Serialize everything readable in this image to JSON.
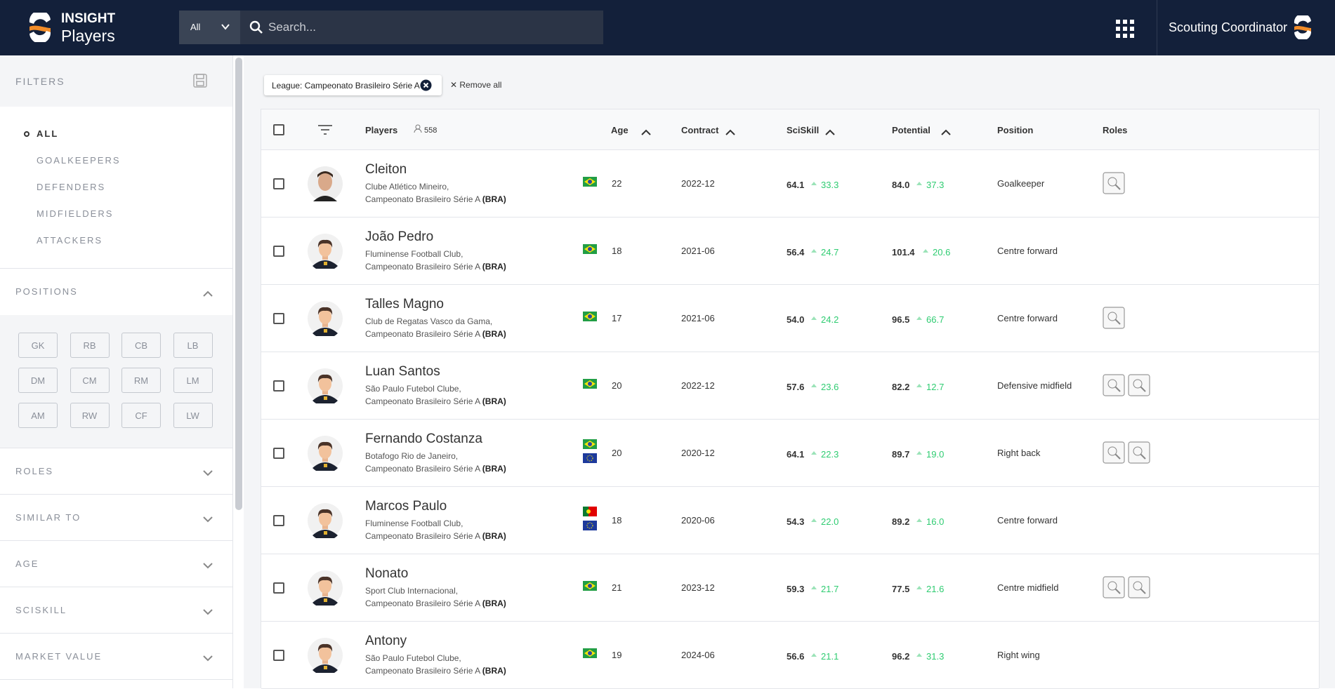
{
  "header": {
    "brand": "INSIGHT",
    "product": "Players",
    "search_scope": "All",
    "search_placeholder": "Search...",
    "user": "Scouting Coordinator"
  },
  "sidebar": {
    "title": "FILTERS",
    "groups": [
      "ALL",
      "GOALKEEPERS",
      "DEFENDERS",
      "MIDFIELDERS",
      "ATTACKERS"
    ],
    "positions_title": "POSITIONS",
    "positions": [
      "GK",
      "RB",
      "CB",
      "LB",
      "DM",
      "CM",
      "RM",
      "LM",
      "AM",
      "RW",
      "CF",
      "LW"
    ],
    "sections": [
      "ROLES",
      "SIMILAR TO",
      "AGE",
      "SCISKILL",
      "MARKET VALUE"
    ]
  },
  "chips": {
    "filter": "League: Campeonato Brasileiro Série A",
    "remove_all": "Remove all"
  },
  "table": {
    "columns": [
      "Players",
      "Age",
      "Contract",
      "SciSkill",
      "Potential",
      "Position",
      "Roles"
    ],
    "player_count": "558",
    "rows": [
      {
        "name": "Cleiton",
        "club": "Clube Atlético Mineiro,",
        "league": "Campeonato Brasileiro Série A",
        "country": "(BRA)",
        "age": "22",
        "contract": "2022-12",
        "sciskill": "64.1",
        "sciskill_delta": "33.3",
        "potential": "84.0",
        "potential_delta": "37.3",
        "position": "Goalkeeper"
      },
      {
        "name": "João Pedro",
        "club": "Fluminense Football Club,",
        "league": "Campeonato Brasileiro Série A",
        "country": "(BRA)",
        "age": "18",
        "contract": "2021-06",
        "sciskill": "56.4",
        "sciskill_delta": "24.7",
        "potential": "101.4",
        "potential_delta": "20.6",
        "position": "Centre forward"
      },
      {
        "name": "Talles Magno",
        "club": "Club de Regatas Vasco da Gama,",
        "league": "Campeonato Brasileiro Série A",
        "country": "(BRA)",
        "age": "17",
        "contract": "2021-06",
        "sciskill": "54.0",
        "sciskill_delta": "24.2",
        "potential": "96.5",
        "potential_delta": "66.7",
        "position": "Centre forward"
      },
      {
        "name": "Luan Santos",
        "club": "São Paulo Futebol Clube,",
        "league": "Campeonato Brasileiro Série A",
        "country": "(BRA)",
        "age": "20",
        "contract": "2022-12",
        "sciskill": "57.6",
        "sciskill_delta": "23.6",
        "potential": "82.2",
        "potential_delta": "12.7",
        "position": "Defensive midfield"
      },
      {
        "name": "Fernando Costanza",
        "club": "Botafogo Rio de Janeiro,",
        "league": "Campeonato Brasileiro Série A",
        "country": "(BRA)",
        "age": "20",
        "contract": "2020-12",
        "sciskill": "64.1",
        "sciskill_delta": "22.3",
        "potential": "89.7",
        "potential_delta": "19.0",
        "position": "Right back"
      },
      {
        "name": "Marcos Paulo",
        "club": "Fluminense Football Club,",
        "league": "Campeonato Brasileiro Série A",
        "country": "(BRA)",
        "age": "18",
        "contract": "2020-06",
        "sciskill": "54.3",
        "sciskill_delta": "22.0",
        "potential": "89.2",
        "potential_delta": "16.0",
        "position": "Centre forward"
      },
      {
        "name": "Nonato",
        "club": "Sport Club Internacional,",
        "league": "Campeonato Brasileiro Série A",
        "country": "(BRA)",
        "age": "21",
        "contract": "2023-12",
        "sciskill": "59.3",
        "sciskill_delta": "21.7",
        "potential": "77.5",
        "potential_delta": "21.6",
        "position": "Centre midfield"
      },
      {
        "name": "Antony",
        "club": "São Paulo Futebol Clube,",
        "league": "Campeonato Brasileiro Série A",
        "country": "(BRA)",
        "age": "19",
        "contract": "2024-06",
        "sciskill": "56.6",
        "sciskill_delta": "21.1",
        "potential": "96.2",
        "potential_delta": "31.3",
        "position": "Right wing"
      }
    ]
  }
}
